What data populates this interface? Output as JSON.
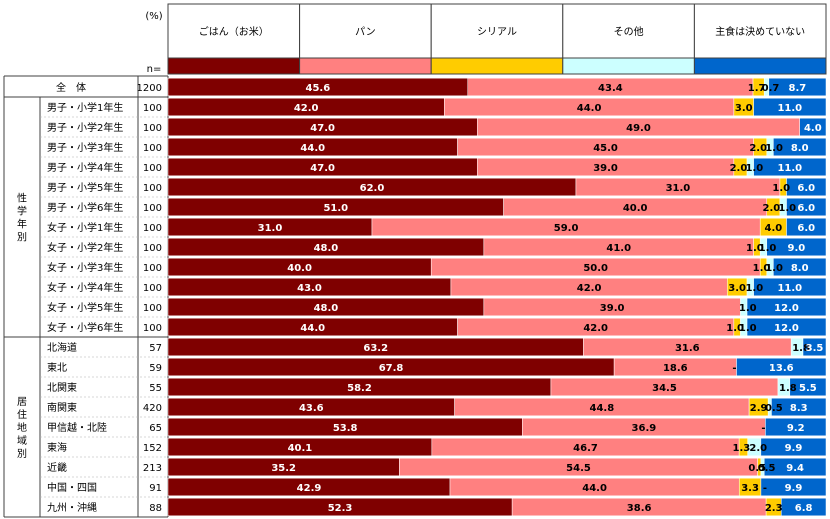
{
  "chart_data": {
    "type": "stacked-bar-horizontal",
    "unit_label": "(%)",
    "n_label": "n=",
    "series": [
      {
        "name": "ごはん（お米）",
        "color": "#7f0000"
      },
      {
        "name": "パン",
        "color": "#ff8080"
      },
      {
        "name": "シリアル",
        "color": "#ffcc00"
      },
      {
        "name": "その他",
        "color": "#ccffff"
      },
      {
        "name": "主食は決めていない",
        "color": "#0066cc"
      }
    ],
    "groups": [
      {
        "label": "",
        "rows": [
          0
        ]
      },
      {
        "label": "性学年別",
        "rows": [
          1,
          2,
          3,
          4,
          5,
          6,
          7,
          8,
          9,
          10,
          11,
          12
        ]
      },
      {
        "label": "居住地域別",
        "rows": [
          13,
          14,
          15,
          16,
          17,
          18,
          19,
          20,
          21
        ]
      }
    ],
    "rows": [
      {
        "label": "全　体",
        "n": "1200",
        "values": [
          45.6,
          43.4,
          1.7,
          0.7,
          8.7
        ],
        "labels": [
          "45.6",
          "43.4",
          "1.7",
          "0.7",
          "8.7"
        ]
      },
      {
        "label": "男子・小学1年生",
        "n": "100",
        "values": [
          42.0,
          44.0,
          3.0,
          0,
          11.0
        ],
        "labels": [
          "42.0",
          "44.0",
          "3.0",
          "",
          "11.0"
        ]
      },
      {
        "label": "男子・小学2年生",
        "n": "100",
        "values": [
          47.0,
          49.0,
          0,
          0,
          4.0
        ],
        "labels": [
          "47.0",
          "49.0",
          "",
          "",
          "4.0"
        ]
      },
      {
        "label": "男子・小学3年生",
        "n": "100",
        "values": [
          44.0,
          45.0,
          2.0,
          1.0,
          8.0
        ],
        "labels": [
          "44.0",
          "45.0",
          "2.0",
          "1.0",
          "8.0"
        ]
      },
      {
        "label": "男子・小学4年生",
        "n": "100",
        "values": [
          47.0,
          39.0,
          2.0,
          1.0,
          11.0
        ],
        "labels": [
          "47.0",
          "39.0",
          "2.0",
          "1.0",
          "11.0"
        ]
      },
      {
        "label": "男子・小学5年生",
        "n": "100",
        "values": [
          62.0,
          31.0,
          1.0,
          0,
          6.0
        ],
        "labels": [
          "62.0",
          "31.0",
          "1.0",
          "",
          "6.0"
        ]
      },
      {
        "label": "男子・小学6年生",
        "n": "100",
        "values": [
          51.0,
          40.0,
          2.0,
          1.0,
          6.0
        ],
        "labels": [
          "51.0",
          "40.0",
          "2.0",
          "1.0",
          "6.0"
        ]
      },
      {
        "label": "女子・小学1年生",
        "n": "100",
        "values": [
          31.0,
          59.0,
          4.0,
          0,
          6.0
        ],
        "labels": [
          "31.0",
          "59.0",
          "4.0",
          "",
          "6.0"
        ]
      },
      {
        "label": "女子・小学2年生",
        "n": "100",
        "values": [
          48.0,
          41.0,
          1.0,
          1.0,
          9.0
        ],
        "labels": [
          "48.0",
          "41.0",
          "1.0",
          "1.0",
          "9.0"
        ]
      },
      {
        "label": "女子・小学3年生",
        "n": "100",
        "values": [
          40.0,
          50.0,
          1.0,
          1.0,
          8.0
        ],
        "labels": [
          "40.0",
          "50.0",
          "1.0",
          "1.0",
          "8.0"
        ]
      },
      {
        "label": "女子・小学4年生",
        "n": "100",
        "values": [
          43.0,
          42.0,
          3.0,
          1.0,
          11.0
        ],
        "labels": [
          "43.0",
          "42.0",
          "3.0",
          "1.0",
          "11.0"
        ]
      },
      {
        "label": "女子・小学5年生",
        "n": "100",
        "values": [
          48.0,
          39.0,
          0,
          1.0,
          12.0
        ],
        "labels": [
          "48.0",
          "39.0",
          "",
          "1.0",
          "12.0"
        ]
      },
      {
        "label": "女子・小学6年生",
        "n": "100",
        "values": [
          44.0,
          42.0,
          1.0,
          1.0,
          12.0
        ],
        "labels": [
          "44.0",
          "42.0",
          "1.0",
          "1.0",
          "12.0"
        ]
      },
      {
        "label": "北海道",
        "n": "57",
        "values": [
          63.2,
          31.6,
          0,
          1.8,
          3.5
        ],
        "labels": [
          "63.2",
          "31.6",
          "",
          "1.8",
          "3.5"
        ]
      },
      {
        "label": "東北",
        "n": "59",
        "values": [
          67.8,
          18.6,
          0,
          0,
          13.6
        ],
        "labels": [
          "67.8",
          "18.6",
          "-",
          "",
          "13.6"
        ]
      },
      {
        "label": "北関東",
        "n": "55",
        "values": [
          58.2,
          34.5,
          0,
          1.8,
          5.5
        ],
        "labels": [
          "58.2",
          "34.5",
          "",
          "1.8",
          "5.5"
        ]
      },
      {
        "label": "南関東",
        "n": "420",
        "values": [
          43.6,
          44.8,
          2.9,
          0.5,
          8.3
        ],
        "labels": [
          "43.6",
          "44.8",
          "2.9",
          "0.5",
          "8.3"
        ]
      },
      {
        "label": "甲信越・北陸",
        "n": "65",
        "values": [
          53.8,
          36.9,
          0,
          0,
          9.2
        ],
        "labels": [
          "53.8",
          "36.9",
          "-",
          "",
          "9.2"
        ]
      },
      {
        "label": "東海",
        "n": "152",
        "values": [
          40.1,
          46.7,
          1.3,
          2.0,
          9.9
        ],
        "labels": [
          "40.1",
          "46.7",
          "1.3",
          "2.0",
          "9.9"
        ]
      },
      {
        "label": "近畿",
        "n": "213",
        "values": [
          35.2,
          54.5,
          0.5,
          0.5,
          9.4
        ],
        "labels": [
          "35.2",
          "54.5",
          "0.5",
          "0.5",
          "9.4"
        ]
      },
      {
        "label": "中国・四国",
        "n": "91",
        "values": [
          42.9,
          44.0,
          3.3,
          0,
          9.9
        ],
        "labels": [
          "42.9",
          "44.0",
          "3.3",
          "-",
          "9.9"
        ]
      },
      {
        "label": "九州・沖縄",
        "n": "88",
        "values": [
          52.3,
          38.6,
          2.3,
          0,
          6.8
        ],
        "labels": [
          "52.3",
          "38.6",
          "2.3",
          "",
          "6.8"
        ]
      }
    ]
  }
}
